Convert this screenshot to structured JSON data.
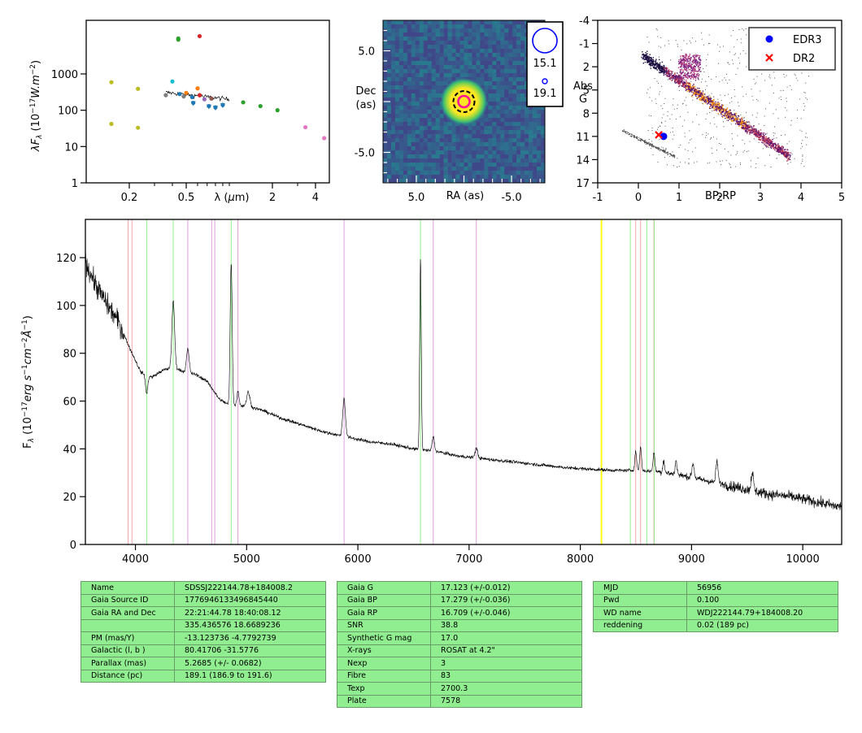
{
  "chart_data": [
    {
      "id": "sed",
      "type": "scatter",
      "xlabel": "λ (μm)",
      "ylabel": "λF_λ (10^-17 W.m^-2)",
      "xscale": "log",
      "yscale": "log",
      "xlim": [
        0.1,
        5.0
      ],
      "ylim": [
        1,
        30000
      ],
      "xticks": [
        {
          "v": 0.2,
          "label": "0.2"
        },
        {
          "v": 0.5,
          "label": "0.5"
        },
        {
          "v": 2,
          "label": "2"
        },
        {
          "v": 4,
          "label": "4"
        }
      ],
      "yticks": [
        {
          "v": 1,
          "label": "1"
        },
        {
          "v": 10,
          "label": "10"
        },
        {
          "v": 100,
          "label": "100"
        },
        {
          "v": 1000,
          "label": "1000"
        }
      ],
      "points": [
        {
          "x": 0.15,
          "y": 590,
          "color": "#bcbd22"
        },
        {
          "x": 0.23,
          "y": 390,
          "color": "#bcbd22"
        },
        {
          "x": 0.15,
          "y": 42,
          "color": "#bcbd22"
        },
        {
          "x": 0.23,
          "y": 33,
          "color": "#bcbd22"
        },
        {
          "x": 0.44,
          "y": 9500,
          "color": "#2ca02c"
        },
        {
          "x": 0.44,
          "y": 8800,
          "color": "#2ca02c"
        },
        {
          "x": 0.62,
          "y": 11000,
          "color": "#d62728"
        },
        {
          "x": 0.36,
          "y": 260,
          "color": "#7f7f7f"
        },
        {
          "x": 0.4,
          "y": 620,
          "color": "#17becf"
        },
        {
          "x": 0.45,
          "y": 280,
          "color": "#1f77b4"
        },
        {
          "x": 0.48,
          "y": 240,
          "color": "#7f7f7f"
        },
        {
          "x": 0.5,
          "y": 300,
          "color": "#ff7f0e"
        },
        {
          "x": 0.55,
          "y": 230,
          "color": "#1f77b4"
        },
        {
          "x": 0.6,
          "y": 400,
          "color": "#ff7f0e"
        },
        {
          "x": 0.62,
          "y": 260,
          "color": "#d62728"
        },
        {
          "x": 0.67,
          "y": 200,
          "color": "#9467bd"
        },
        {
          "x": 0.75,
          "y": 210,
          "color": "#8c564b"
        },
        {
          "x": 0.56,
          "y": 160,
          "color": "#1f77b4"
        },
        {
          "x": 0.72,
          "y": 130,
          "color": "#1f77b4"
        },
        {
          "x": 0.8,
          "y": 120,
          "color": "#1f77b4"
        },
        {
          "x": 0.9,
          "y": 140,
          "color": "#1f77b4"
        },
        {
          "x": 1.25,
          "y": 165,
          "color": "#2ca02c"
        },
        {
          "x": 1.65,
          "y": 130,
          "color": "#2ca02c"
        },
        {
          "x": 2.17,
          "y": 100,
          "color": "#2ca02c"
        },
        {
          "x": 3.4,
          "y": 34,
          "color": "#e377c2"
        },
        {
          "x": 4.6,
          "y": 17,
          "color": "#e377c2"
        }
      ],
      "spectrum_segment": {
        "x_range": [
          0.36,
          1.0
        ],
        "y_start": 310,
        "y_end": 200
      }
    },
    {
      "id": "image",
      "type": "heatmap",
      "xlabel": "RA (as)",
      "ylabel": "Dec\n(as)",
      "xlim": [
        8.5,
        -8.5
      ],
      "ylim": [
        -8.0,
        8.0
      ],
      "xticks": [
        {
          "v": 5.0,
          "label": "5.0"
        },
        {
          "v": -5.0,
          "label": "-5.0"
        }
      ],
      "yticks": [
        {
          "v": 5.0,
          "label": "5.0"
        },
        {
          "v": -5.0,
          "label": "-5.0"
        }
      ],
      "source": {
        "x": 0.0,
        "y": 0.0
      },
      "legend_mags": [
        "15.1",
        "19.1"
      ]
    },
    {
      "id": "hrd",
      "type": "scatter",
      "xlabel": "BP-RP",
      "ylabel": "Abs\nG",
      "xlim": [
        -1,
        5
      ],
      "ylim": [
        17,
        -4
      ],
      "xticks": [
        {
          "v": -1,
          "label": "-1"
        },
        {
          "v": 0,
          "label": "0"
        },
        {
          "v": 1,
          "label": "1"
        },
        {
          "v": 2,
          "label": "2"
        },
        {
          "v": 3,
          "label": "3"
        },
        {
          "v": 4,
          "label": "4"
        },
        {
          "v": 5,
          "label": "5"
        }
      ],
      "yticks": [
        {
          "v": -4,
          "label": "-4"
        },
        {
          "v": -1,
          "label": "-1"
        },
        {
          "v": 2,
          "label": "2"
        },
        {
          "v": 5,
          "label": "5"
        },
        {
          "v": 8,
          "label": "8"
        },
        {
          "v": 11,
          "label": "11"
        },
        {
          "v": 14,
          "label": "14"
        },
        {
          "v": 17,
          "label": "17"
        }
      ],
      "series": [
        {
          "name": "EDR3",
          "x": 0.62,
          "y": 11.0,
          "color": "#0000ff",
          "marker": "circle"
        },
        {
          "name": "DR2",
          "x": 0.5,
          "y": 10.8,
          "color": "#ff0000",
          "marker": "x"
        }
      ],
      "legend_position": "top-right"
    },
    {
      "id": "spectrum",
      "type": "line",
      "xlabel": "",
      "ylabel": "F_λ (10^-17 erg s^-1 cm^-2 Å^-1)",
      "xlim": [
        3550,
        10350
      ],
      "ylim": [
        0,
        136
      ],
      "xticks": [
        4000,
        5000,
        6000,
        7000,
        8000,
        9000,
        10000
      ],
      "yticks": [
        0,
        20,
        40,
        60,
        80,
        100,
        120
      ],
      "continuum": [
        [
          3550,
          118
        ],
        [
          3650,
          108
        ],
        [
          3750,
          100
        ],
        [
          3850,
          93
        ],
        [
          3950,
          82
        ],
        [
          4050,
          72
        ],
        [
          4150,
          70
        ],
        [
          4250,
          73
        ],
        [
          4350,
          74
        ],
        [
          4450,
          72
        ],
        [
          4550,
          71
        ],
        [
          4650,
          68
        ],
        [
          4750,
          61
        ],
        [
          4850,
          58
        ],
        [
          5000,
          58
        ],
        [
          5150,
          56
        ],
        [
          5300,
          53
        ],
        [
          5500,
          50
        ],
        [
          5700,
          47
        ],
        [
          5900,
          45
        ],
        [
          6100,
          43
        ],
        [
          6300,
          42
        ],
        [
          6500,
          40
        ],
        [
          6700,
          39
        ],
        [
          6900,
          37
        ],
        [
          7100,
          36
        ],
        [
          7300,
          35
        ],
        [
          7500,
          34
        ],
        [
          7700,
          33
        ],
        [
          7900,
          32
        ],
        [
          8100,
          31.5
        ],
        [
          8300,
          31
        ],
        [
          8500,
          31
        ],
        [
          8700,
          30.5
        ],
        [
          8900,
          29
        ],
        [
          9100,
          27
        ],
        [
          9300,
          25
        ],
        [
          9500,
          23
        ],
        [
          9700,
          21
        ],
        [
          9900,
          20
        ],
        [
          10100,
          18
        ],
        [
          10300,
          16
        ]
      ],
      "lines": [
        {
          "x": 4101,
          "w": 10,
          "h": 8,
          "sign": -1
        },
        {
          "x": 4340,
          "w": 12,
          "h": 28,
          "sign": 1
        },
        {
          "x": 4471,
          "w": 12,
          "h": 10,
          "sign": 1
        },
        {
          "x": 4861,
          "w": 9,
          "h": 60,
          "sign": 1
        },
        {
          "x": 4922,
          "w": 10,
          "h": 6,
          "sign": 1
        },
        {
          "x": 5015,
          "w": 14,
          "h": 6,
          "sign": 1
        },
        {
          "x": 5876,
          "w": 12,
          "h": 16,
          "sign": 1
        },
        {
          "x": 6563,
          "w": 7,
          "h": 80,
          "sign": 1
        },
        {
          "x": 6678,
          "w": 10,
          "h": 6,
          "sign": 1
        },
        {
          "x": 7065,
          "w": 12,
          "h": 4,
          "sign": 1
        },
        {
          "x": 8498,
          "w": 8,
          "h": 8,
          "sign": 1
        },
        {
          "x": 8542,
          "w": 8,
          "h": 10,
          "sign": 1
        },
        {
          "x": 8662,
          "w": 8,
          "h": 8,
          "sign": 1
        },
        {
          "x": 8750,
          "w": 8,
          "h": 5,
          "sign": 1
        },
        {
          "x": 8862,
          "w": 8,
          "h": 6,
          "sign": 1
        },
        {
          "x": 9014,
          "w": 10,
          "h": 6,
          "sign": 1
        },
        {
          "x": 9229,
          "w": 10,
          "h": 9,
          "sign": 1
        },
        {
          "x": 9546,
          "w": 10,
          "h": 8,
          "sign": 1
        }
      ],
      "vlines": [
        {
          "x": 3934,
          "color": "#f4a6a6"
        },
        {
          "x": 3969,
          "color": "#f4a6a6"
        },
        {
          "x": 4101,
          "color": "#90ee90"
        },
        {
          "x": 4340,
          "color": "#90ee90"
        },
        {
          "x": 4471,
          "color": "#dda0dd"
        },
        {
          "x": 4686,
          "color": "#dda0dd"
        },
        {
          "x": 4713,
          "color": "#dda0dd"
        },
        {
          "x": 4861,
          "color": "#90ee90"
        },
        {
          "x": 4922,
          "color": "#dda0dd"
        },
        {
          "x": 5876,
          "color": "#dda0dd"
        },
        {
          "x": 6563,
          "color": "#90ee90"
        },
        {
          "x": 6678,
          "color": "#dda0dd"
        },
        {
          "x": 7065,
          "color": "#dda0dd"
        },
        {
          "x": 8190,
          "color": "#ffff00"
        },
        {
          "x": 8450,
          "color": "#90ee90"
        },
        {
          "x": 8498,
          "color": "#f4a6a6"
        },
        {
          "x": 8542,
          "color": "#f4a6a6"
        },
        {
          "x": 8598,
          "color": "#90ee90"
        },
        {
          "x": 8662,
          "color": "#f4a6a6"
        },
        {
          "x": 8665,
          "color": "#90ee90"
        }
      ]
    }
  ],
  "tables": [
    {
      "rows": [
        [
          "Name",
          "SDSSJ222144.78+184008.2"
        ],
        [
          "Gaia Source ID",
          "1776946133496845440"
        ],
        [
          "Gaia RA and Dec",
          "22:21:44.78    18:40:08.12"
        ],
        [
          "",
          "335.436576    18.6689236"
        ],
        [
          "PM (mas/Y)",
          "-13.123736    -4.7792739"
        ],
        [
          "Galactic (l, b )",
          "80.41706    -31.5776"
        ],
        [
          "Parallax (mas)",
          "5.2685 (+/- 0.0682)"
        ],
        [
          "Distance (pc)",
          "189.1 (186.9 to 191.6)"
        ]
      ]
    },
    {
      "rows": [
        [
          "Gaia G",
          "17.123 (+/-0.012)"
        ],
        [
          "Gaia BP",
          "17.279 (+/-0.036)"
        ],
        [
          "Gaia RP",
          "16.709 (+/-0.046)"
        ],
        [
          "SNR",
          "38.8"
        ],
        [
          "Synthetic G mag",
          "17.0"
        ],
        [
          "X-rays",
          "ROSAT at 4.2\""
        ],
        [
          "Nexp",
          "3"
        ],
        [
          "Fibre",
          "83"
        ],
        [
          "Texp",
          "2700.3"
        ],
        [
          "Plate",
          "7578"
        ]
      ]
    },
    {
      "rows": [
        [
          "MJD",
          "56956"
        ],
        [
          "Pwd",
          "0.100"
        ],
        [
          "WD name",
          "WDJ222144.79+184008.20"
        ],
        [
          "reddening",
          "0.02 (189 pc)"
        ]
      ]
    }
  ]
}
